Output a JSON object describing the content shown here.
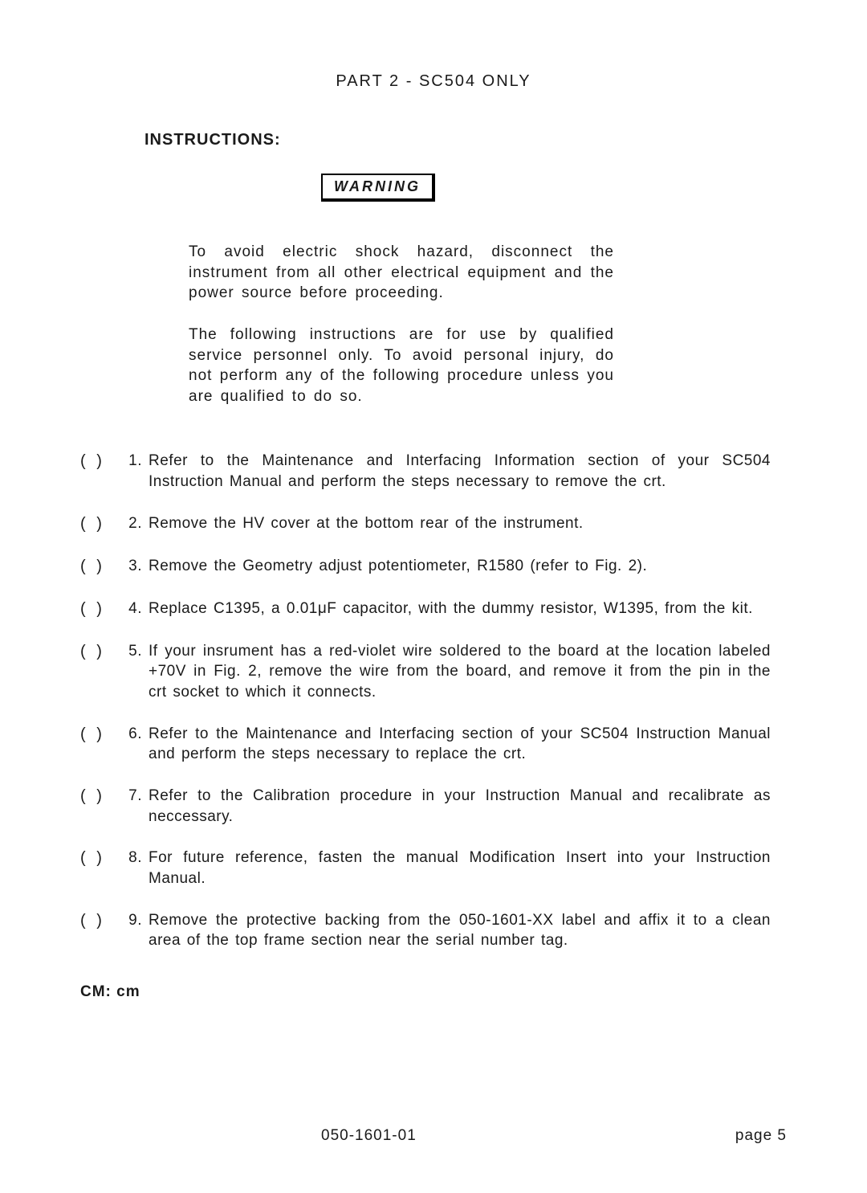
{
  "header": "PART 2 - SC504 ONLY",
  "instructions_label": "INSTRUCTIONS:",
  "warning_label": "WARNING",
  "warning_paragraphs": [
    "To avoid electric shock hazard, disconnect the instrument from all other electrical equipment and the power source before proceeding.",
    "The following instructions are for use by qualified service personnel only. To avoid personal injury, do not perform any of the following procedure unless you are qualified to do so."
  ],
  "checkbox": "( )",
  "steps": [
    {
      "num": "1.",
      "text": "Refer to the Maintenance and Interfacing Information section of your SC504 Instruction Manual and perform the steps necessary to remove the crt."
    },
    {
      "num": "2.",
      "text": "Remove the HV cover at the bottom rear of the instrument."
    },
    {
      "num": "3.",
      "text": "Remove the Geometry adjust potentiometer, R1580 (refer to Fig. 2)."
    },
    {
      "num": "4.",
      "text": "Replace C1395, a 0.01μF capacitor, with the dummy resistor, W1395, from the kit."
    },
    {
      "num": "5.",
      "text": "If your insrument has a red-violet wire soldered to the board at the location labeled +70V in Fig. 2, remove the wire from the board, and remove it from the pin in the crt socket to which it connects."
    },
    {
      "num": "6.",
      "text": "Refer to the Maintenance and Interfacing section of your SC504 Instruction Manual and perform the steps necessary to replace the crt."
    },
    {
      "num": "7.",
      "text": "Refer to the Calibration procedure in your Instruction Manual and recalibrate as neccessary."
    },
    {
      "num": "8.",
      "text": "For future reference, fasten the manual Modification Insert into your Instruction Manual."
    },
    {
      "num": "9.",
      "text": "Remove the protective backing from the 050-1601-XX label and affix it to a clean area of the top frame section near the serial number tag."
    }
  ],
  "footer_cm": "CM: cm",
  "doc_number": "050-1601-01",
  "page_number": "page 5"
}
